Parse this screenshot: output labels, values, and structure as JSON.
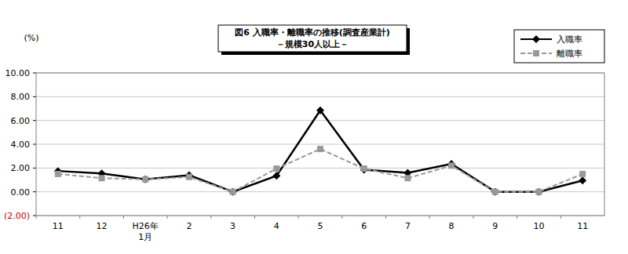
{
  "chart_data": {
    "type": "line",
    "title": "図6 入職率・離職率の推移(調査産業計)",
    "subtitle": "－規模30人以上－",
    "y_label": "(%)",
    "categories": [
      "11",
      "12",
      "H26年\n1月",
      "2",
      "3",
      "4",
      "5",
      "6",
      "7",
      "8",
      "9",
      "10",
      "11"
    ],
    "series": [
      {
        "name": "入職率",
        "color": "#000000",
        "marker": "diamond",
        "line_style": "solid",
        "values": [
          1.75,
          1.55,
          1.05,
          1.4,
          0.0,
          1.35,
          6.85,
          1.85,
          1.6,
          2.35,
          0.0,
          0.0,
          0.95
        ]
      },
      {
        "name": "離職率",
        "color": "#999999",
        "marker": "square",
        "line_style": "dashed",
        "values": [
          1.5,
          1.15,
          1.05,
          1.25,
          0.0,
          1.95,
          3.6,
          1.95,
          1.15,
          2.2,
          0.0,
          0.0,
          1.5
        ]
      }
    ],
    "ylim": [
      -2,
      10
    ],
    "yticks": [
      {
        "value": -2,
        "label": "(2.00)"
      },
      {
        "value": 0,
        "label": "0.00"
      },
      {
        "value": 2,
        "label": "2.00"
      },
      {
        "value": 4,
        "label": "4.00"
      },
      {
        "value": 6,
        "label": "6.00"
      },
      {
        "value": 8,
        "label": "8.00"
      },
      {
        "value": 10,
        "label": "10.00"
      }
    ],
    "grid": true,
    "legend": "top-right"
  }
}
